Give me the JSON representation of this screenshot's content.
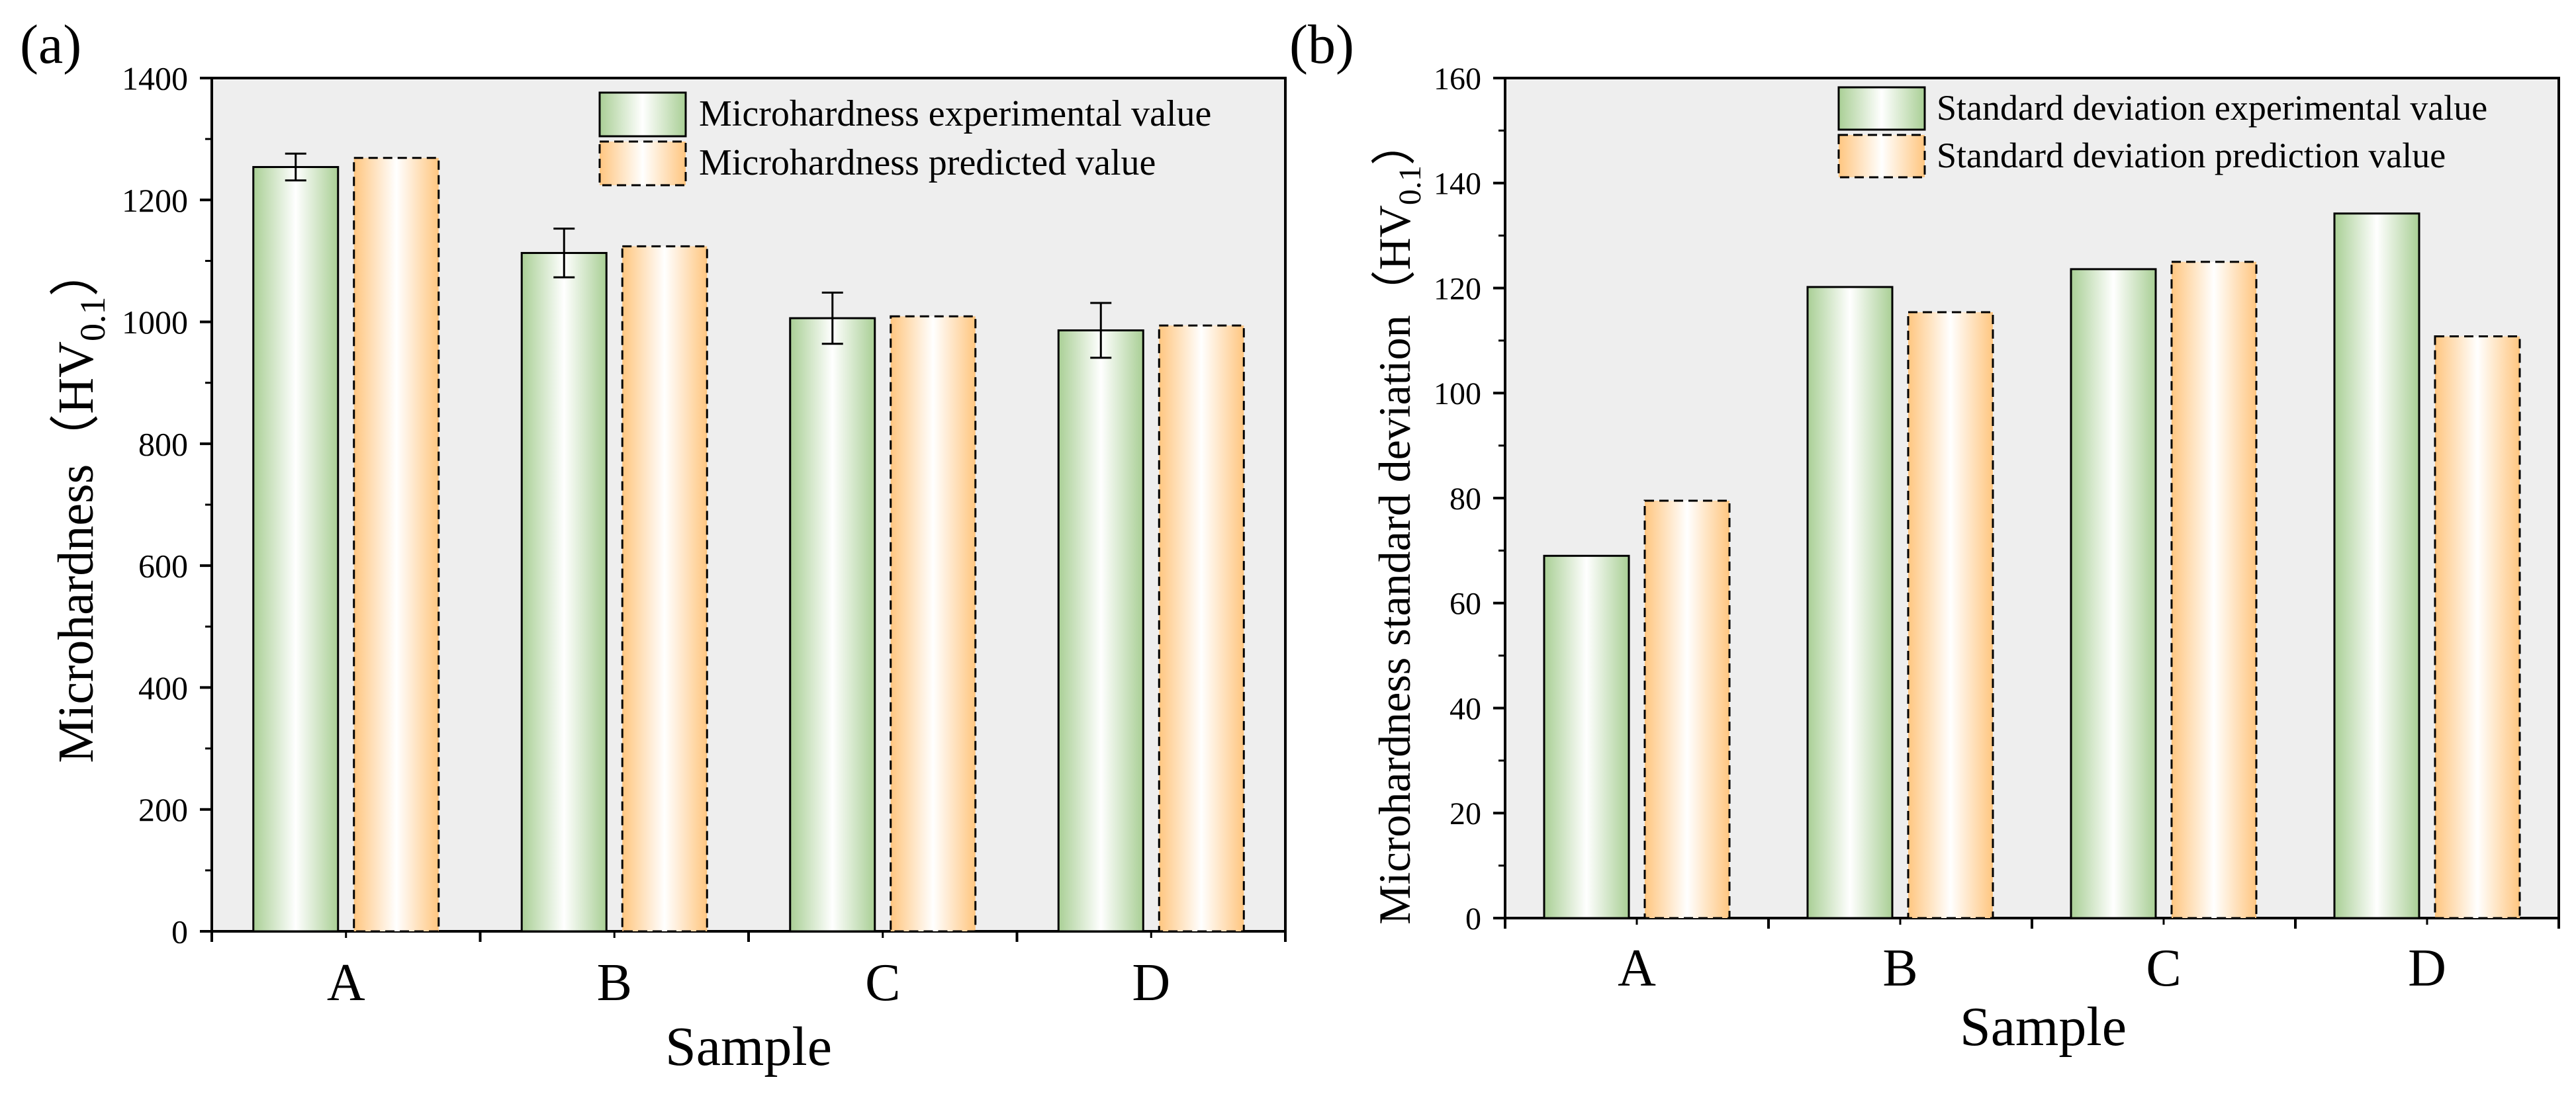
{
  "panels": [
    {
      "panel_label": "(a)",
      "legend": [
        {
          "label": "Microhardness experimental value",
          "style": "green"
        },
        {
          "label": "Microhardness predicted value",
          "style": "orange"
        }
      ]
    },
    {
      "panel_label": "(b)",
      "legend": [
        {
          "label": "Standard deviation experimental value",
          "style": "green"
        },
        {
          "label": "Standard deviation prediction value",
          "style": "orange"
        }
      ]
    }
  ],
  "colors": {
    "plot_background": "#eeeeee",
    "green_edge": "#a9cf95",
    "green_center": "#ffffff",
    "orange_edge": "#ffc680",
    "orange_center": "#ffffff",
    "axis": "#000000"
  },
  "chart_data": [
    {
      "type": "bar",
      "title": "",
      "xlabel": "Sample",
      "ylabel": "Microhardness（HV",
      "ylabel_sub": "0.1",
      "ylabel_close": "）",
      "categories": [
        "A",
        "B",
        "C",
        "D"
      ],
      "series": [
        {
          "name": "Microhardness experimental value",
          "values": [
            1254,
            1113,
            1006,
            986
          ],
          "errors": [
            22,
            40,
            42,
            45
          ]
        },
        {
          "name": "Microhardness predicted value",
          "values": [
            1269,
            1124,
            1009,
            994
          ]
        }
      ],
      "ylim": [
        0,
        1400
      ],
      "yticks": [
        0,
        200,
        400,
        600,
        800,
        1000,
        1200,
        1400
      ],
      "grid": false,
      "legend_position": "top-right"
    },
    {
      "type": "bar",
      "title": "",
      "xlabel": "Sample",
      "ylabel": "Microhardness standard deviation（HV",
      "ylabel_sub": "0.1",
      "ylabel_close": "）",
      "categories": [
        "A",
        "B",
        "C",
        "D"
      ],
      "series": [
        {
          "name": "Standard deviation experimental value",
          "values": [
            69,
            120.2,
            123.6,
            134.2
          ]
        },
        {
          "name": "Standard deviation prediction value",
          "values": [
            79.5,
            115.4,
            125,
            110.8
          ]
        }
      ],
      "ylim": [
        0,
        160
      ],
      "yticks": [
        0,
        20,
        40,
        60,
        80,
        100,
        120,
        140,
        160
      ],
      "grid": false,
      "legend_position": "top-right"
    }
  ]
}
